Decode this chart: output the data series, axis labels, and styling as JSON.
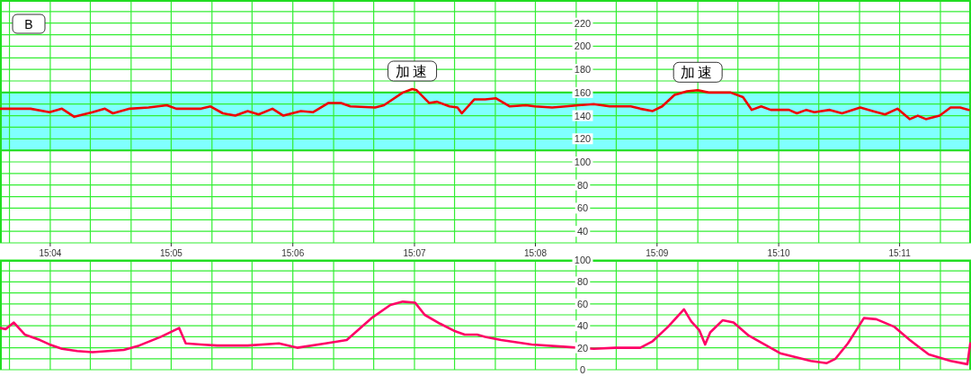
{
  "chart_data": [
    {
      "type": "line",
      "title": "B",
      "xlim": [
        15.0598,
        15.1931
      ],
      "ylim": [
        30,
        240
      ],
      "grid": true,
      "xticks": [
        {
          "value": 15.0611,
          "label": null
        },
        {
          "value": 15.0667,
          "label": "15:04"
        },
        {
          "value": 15.0722,
          "label": null
        },
        {
          "value": 15.0778,
          "label": null
        },
        {
          "value": 15.0833,
          "label": "15:05"
        },
        {
          "value": 15.0889,
          "label": null
        },
        {
          "value": 15.0944,
          "label": null
        },
        {
          "value": 15.1,
          "label": "15:06"
        },
        {
          "value": 15.1056,
          "label": null
        },
        {
          "value": 15.1111,
          "label": null
        },
        {
          "value": 15.1167,
          "label": "15:07"
        },
        {
          "value": 15.1222,
          "label": null
        },
        {
          "value": 15.1278,
          "label": null
        },
        {
          "value": 15.1333,
          "label": "15:08"
        },
        {
          "value": 15.1389,
          "label": null
        },
        {
          "value": 15.1444,
          "label": null
        },
        {
          "value": 15.15,
          "label": "15:09"
        },
        {
          "value": 15.1556,
          "label": null
        },
        {
          "value": 15.1611,
          "label": null
        },
        {
          "value": 15.1667,
          "label": "15:10"
        },
        {
          "value": 15.1722,
          "label": null
        },
        {
          "value": 15.1778,
          "label": null
        },
        {
          "value": 15.1833,
          "label": "15:11"
        },
        {
          "value": 15.1889,
          "label": null
        }
      ],
      "yticks": [
        {
          "value": 30,
          "label": null
        },
        40,
        {
          "value": 50,
          "label": null
        },
        60,
        {
          "value": 70,
          "label": null
        },
        80,
        {
          "value": 90,
          "label": null
        },
        100,
        {
          "value": 110,
          "label": null
        },
        120,
        {
          "value": 130,
          "label": null
        },
        140,
        {
          "value": 150,
          "label": null
        },
        160,
        {
          "value": 170,
          "label": null
        },
        180,
        {
          "value": 190,
          "label": null
        },
        200,
        {
          "value": 210,
          "label": null
        },
        220,
        {
          "value": 230,
          "label": null
        }
      ],
      "bands": [
        {
          "axis": "y",
          "from": 110,
          "to": 160,
          "color": "#80ffff"
        }
      ],
      "annotations": [
        {
          "text": "加速",
          "x": 15.1164,
          "y": 163
        },
        {
          "text": "加速",
          "x": 15.1556,
          "y": 162
        }
      ],
      "series": [
        {
          "color": "#ee0000",
          "x": [
            15.0598,
            15.064,
            15.0666,
            15.0683,
            15.07,
            15.0725,
            15.0742,
            15.0753,
            15.0776,
            15.0802,
            15.0827,
            15.084,
            15.0874,
            15.0887,
            15.0904,
            15.0921,
            15.0938,
            15.0953,
            15.0972,
            15.0987,
            15.1011,
            15.1028,
            15.1049,
            15.1066,
            15.1079,
            15.1113,
            15.1125,
            15.1151,
            15.1164,
            15.117,
            15.1187,
            15.1198,
            15.1215,
            15.1226,
            15.1232,
            15.1249,
            15.1264,
            15.1279,
            15.1298,
            15.132,
            15.1332,
            15.1356,
            15.1375,
            15.1392,
            15.1413,
            15.1435,
            15.1464,
            15.1477,
            15.1494,
            15.1507,
            15.1524,
            15.1541,
            15.1556,
            15.1571,
            15.1601,
            15.1618,
            15.163,
            15.1643,
            15.1656,
            15.1681,
            15.1692,
            15.1705,
            15.1716,
            15.1737,
            15.1754,
            15.1779,
            15.1796,
            15.1813,
            15.183,
            15.1847,
            15.1858,
            15.1869,
            15.1888,
            15.1903,
            15.1916,
            15.1928
          ],
          "values": [
            146,
            146,
            143,
            146,
            139,
            143,
            146,
            142,
            146,
            147,
            149,
            146,
            146,
            148,
            142,
            140,
            144,
            141,
            146,
            140,
            144,
            143,
            151,
            151,
            148,
            147,
            149,
            160,
            163,
            162,
            151,
            152,
            148,
            147,
            142,
            154,
            154,
            155,
            148,
            149,
            148,
            147,
            148,
            149,
            150,
            148,
            148,
            146,
            144,
            148,
            158,
            161,
            162,
            160,
            160,
            156,
            145,
            148,
            145,
            145,
            142,
            145,
            143,
            145,
            142,
            147,
            144,
            141,
            146,
            137,
            140,
            137,
            140,
            147,
            147,
            145
          ]
        }
      ]
    },
    {
      "type": "line",
      "tick_labels": "y",
      "xlim": [
        15.0598,
        15.1931
      ],
      "ylim": [
        0,
        100
      ],
      "grid": true,
      "xticks": [
        {
          "value": 15.0611,
          "label": null
        },
        {
          "value": 15.0667,
          "label": null
        },
        {
          "value": 15.0722,
          "label": null
        },
        {
          "value": 15.0778,
          "label": null
        },
        {
          "value": 15.0833,
          "label": null
        },
        {
          "value": 15.0889,
          "label": null
        },
        {
          "value": 15.0944,
          "label": null
        },
        {
          "value": 15.1,
          "label": null
        },
        {
          "value": 15.1056,
          "label": null
        },
        {
          "value": 15.1111,
          "label": null
        },
        {
          "value": 15.1167,
          "label": null
        },
        {
          "value": 15.1222,
          "label": null
        },
        {
          "value": 15.1278,
          "label": null
        },
        {
          "value": 15.1333,
          "label": null
        },
        {
          "value": 15.1389,
          "label": null
        },
        {
          "value": 15.1444,
          "label": null
        },
        {
          "value": 15.15,
          "label": null
        },
        {
          "value": 15.1556,
          "label": null
        },
        {
          "value": 15.1611,
          "label": null
        },
        {
          "value": 15.1667,
          "label": null
        },
        {
          "value": 15.1722,
          "label": null
        },
        {
          "value": 15.1778,
          "label": null
        },
        {
          "value": 15.1833,
          "label": null
        },
        {
          "value": 15.1889,
          "label": null
        }
      ],
      "yticks": [
        0,
        {
          "value": 10,
          "label": null
        },
        20,
        {
          "value": 30,
          "label": null
        },
        40,
        {
          "value": 50,
          "label": null
        },
        60,
        {
          "value": 70,
          "label": null
        },
        80,
        {
          "value": 90,
          "label": null
        },
        100
      ],
      "series": [
        {
          "color": "#ff0066",
          "x": [
            15.0598,
            15.0606,
            15.0617,
            15.0632,
            15.0653,
            15.0666,
            15.0683,
            15.0704,
            15.0725,
            15.0768,
            15.0789,
            15.0819,
            15.0844,
            15.0853,
            15.0874,
            15.0896,
            15.0938,
            15.0981,
            15.1006,
            15.1045,
            15.1074,
            15.1108,
            15.1134,
            15.1151,
            15.1168,
            15.1181,
            15.1202,
            15.1223,
            15.1236,
            15.1253,
            15.1264,
            15.1286,
            15.1328,
            15.1371,
            15.1413,
            15.1443,
            15.1477,
            15.1494,
            15.1515,
            15.1537,
            15.1547,
            15.1558,
            15.1566,
            15.1573,
            15.159,
            15.1605,
            15.1626,
            15.1669,
            15.1711,
            15.1733,
            15.1745,
            15.1762,
            15.1784,
            15.1801,
            15.1826,
            15.1847,
            15.1873,
            15.1903,
            15.1926,
            15.193
          ],
          "values": [
            38,
            37,
            43,
            32,
            27,
            23,
            19,
            17,
            16,
            18,
            22,
            30,
            38,
            24,
            23,
            22,
            22,
            24,
            20,
            24,
            27,
            47,
            59,
            62,
            61,
            50,
            42,
            35,
            32,
            32,
            30,
            27,
            23,
            21,
            19,
            20,
            20,
            26,
            39,
            55,
            44,
            36,
            23,
            34,
            45,
            43,
            31,
            15,
            8,
            6,
            10,
            24,
            47,
            46,
            39,
            27,
            14,
            8,
            5,
            24
          ]
        }
      ]
    }
  ]
}
